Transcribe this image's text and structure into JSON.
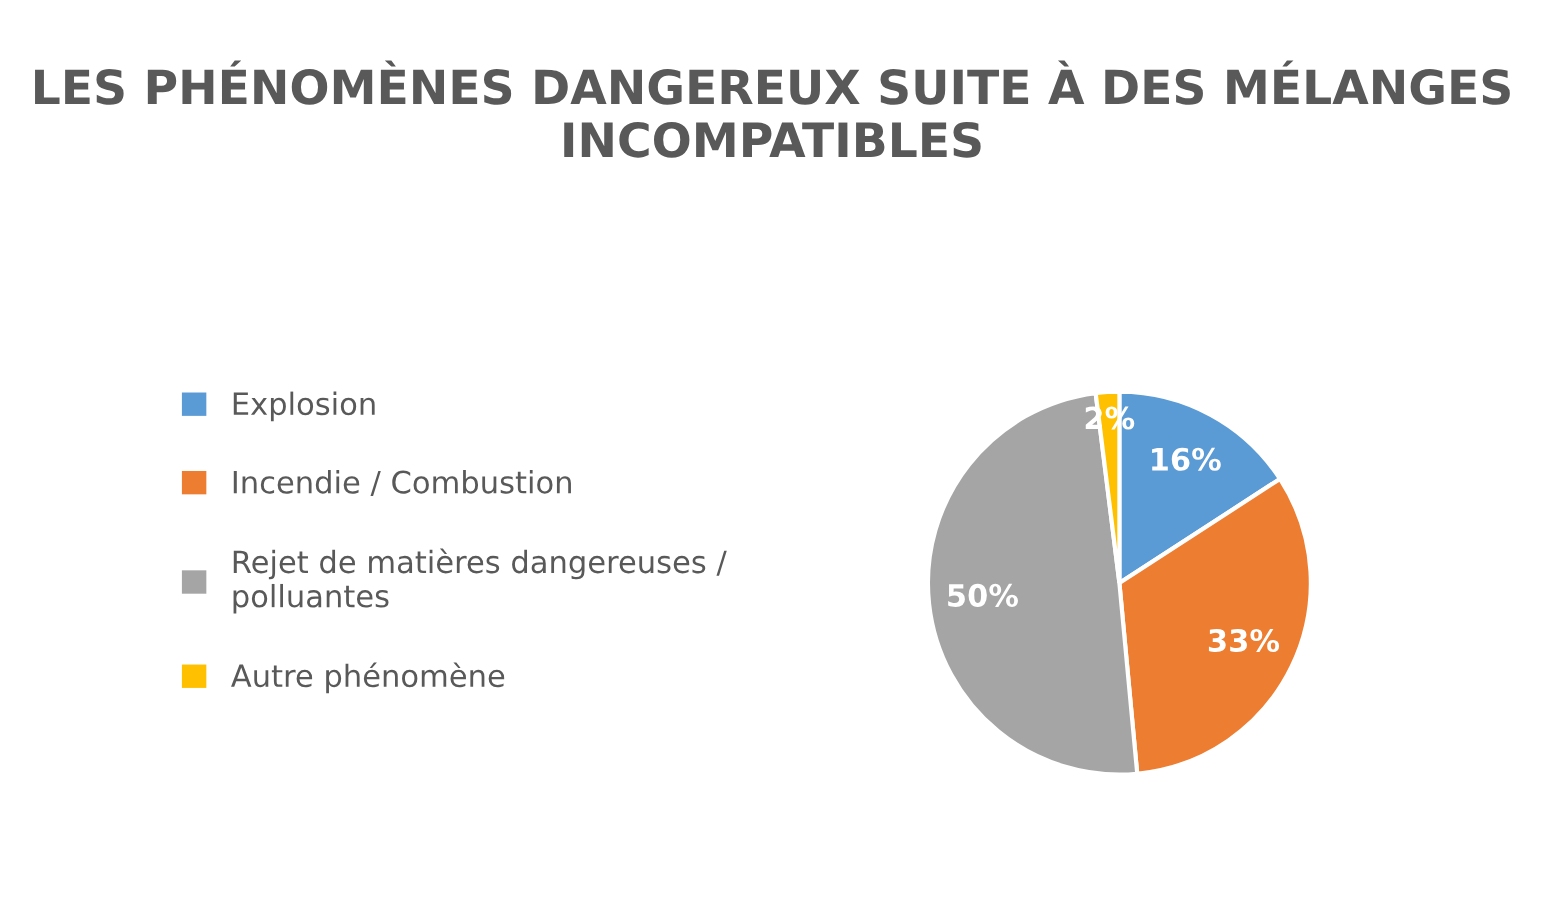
{
  "chart_data": {
    "type": "pie",
    "title": "LES PHÉNOMÈNES DANGEREUX SUITE À DES MÉLANGES INCOMPATIBLES",
    "categories": [
      "Explosion",
      "Incendie / Combustion",
      "Rejet de matières dangereuses / polluantes",
      "Autre phénomène"
    ],
    "values": [
      16,
      33,
      50,
      2
    ],
    "colors": [
      "#5b9bd5",
      "#ed7d31",
      "#a5a5a5",
      "#ffc000"
    ],
    "value_labels": [
      "16%",
      "33%",
      "50%",
      "2%"
    ],
    "legend": "left"
  }
}
